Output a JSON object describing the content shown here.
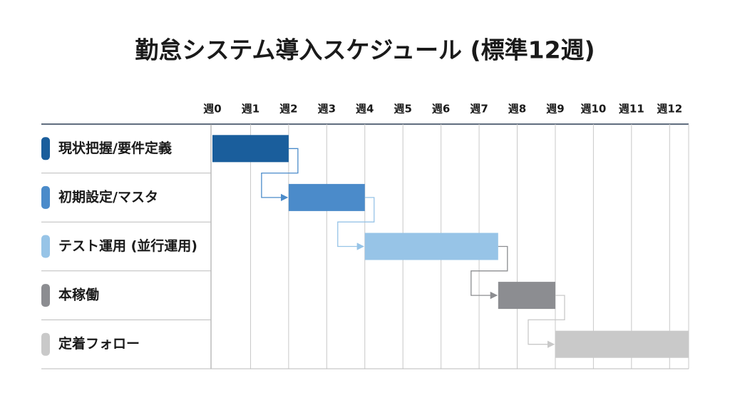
{
  "chart_data": {
    "type": "gantt",
    "title": "勤怠システム導入スケジュール (標準12週)",
    "categories": [
      "現状把握/要件定義",
      "初期設定/マスタ",
      "テスト運用 (並行運用)",
      "本稼働",
      "定着フォロー"
    ],
    "start": [
      0,
      2,
      4,
      7.5,
      9
    ],
    "end": [
      2,
      4,
      7.5,
      9,
      12.5
    ],
    "colors": [
      "#1a5e9c",
      "#4b8bca",
      "#97c4e7",
      "#8c8d91",
      "#c9c9c9"
    ],
    "xlim": [
      0,
      12.5
    ],
    "xticks": [
      {
        "value": 0,
        "label": "週0"
      },
      {
        "value": 1,
        "label": "週1"
      },
      {
        "value": 2,
        "label": "週2"
      },
      {
        "value": 3,
        "label": "週3"
      },
      {
        "value": 4,
        "label": "週4"
      },
      {
        "value": 5,
        "label": "週5"
      },
      {
        "value": 6,
        "label": "週6"
      },
      {
        "value": 7,
        "label": "週7"
      },
      {
        "value": 8,
        "label": "週8"
      },
      {
        "value": 9,
        "label": "週9"
      },
      {
        "value": 10,
        "label": "週10"
      },
      {
        "value": 11,
        "label": "週11"
      },
      {
        "value": 12,
        "label": "週12"
      }
    ],
    "grid": true
  }
}
